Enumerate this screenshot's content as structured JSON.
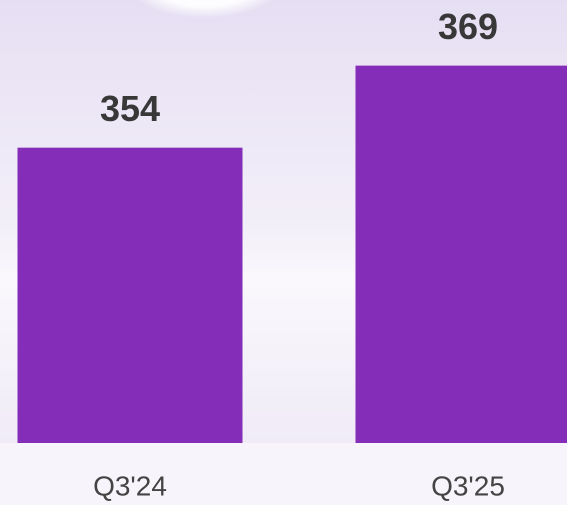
{
  "chart_data": {
    "type": "bar",
    "categories": [
      "Q3'24",
      "Q3'25"
    ],
    "values": [
      354,
      369
    ],
    "color": "#832db8",
    "ylim": [
      300,
      381
    ]
  }
}
